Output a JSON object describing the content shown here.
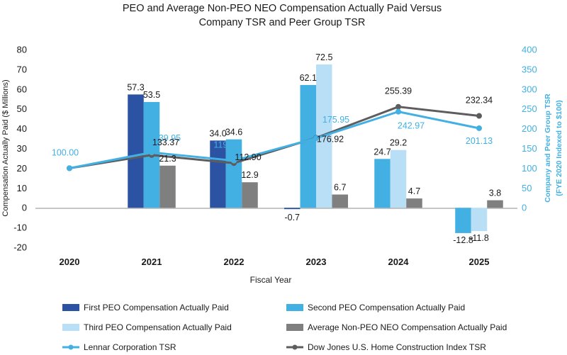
{
  "chart_data": {
    "type": "bar",
    "title_lines": [
      "PEO and Average Non-PEO NEO Compensation Actually Paid Versus",
      "Company TSR and Peer Group TSR"
    ],
    "xlabel": "Fiscal Year",
    "ylabel": "Compensation Actually Paid ($ Millions)",
    "y2label_lines": [
      "Company and Peer Group TSR",
      "(FYE 2020 Indexed to $100)"
    ],
    "ylim": [
      -20,
      80
    ],
    "yticks": [
      -20,
      -10,
      0,
      10,
      20,
      30,
      40,
      50,
      60,
      70,
      80
    ],
    "y2lim": [
      0,
      400
    ],
    "y2ticks": [
      0,
      50,
      100,
      150,
      200,
      250,
      300,
      350,
      400
    ],
    "categories": [
      "2020",
      "2021",
      "2022",
      "2023",
      "2024",
      "2025"
    ],
    "series": [
      {
        "name": "First PEO Compensation Actually Paid",
        "kind": "bar",
        "color": "#2b52a3",
        "values": [
          null,
          57.3,
          34.0,
          -0.7,
          null,
          null
        ],
        "labels": [
          "",
          "57.3",
          "34.0",
          "-0.7",
          "",
          ""
        ]
      },
      {
        "name": "Second PEO Compensation Actually Paid",
        "kind": "bar",
        "color": "#42b0e3",
        "values": [
          null,
          53.5,
          34.6,
          62.1,
          24.7,
          -12.8
        ],
        "labels": [
          "",
          "53.5",
          "34.6",
          "62.1",
          "24.7",
          "-12.8"
        ]
      },
      {
        "name": "Third PEO Compensation Actually Paid",
        "kind": "bar",
        "color": "#b9dff6",
        "values": [
          null,
          null,
          null,
          72.5,
          29.2,
          -11.8
        ],
        "labels": [
          "",
          "",
          "",
          "72.5",
          "29.2",
          "-11.8"
        ]
      },
      {
        "name": "Average Non-PEO NEO Compensation Actually Paid",
        "kind": "bar",
        "color": "#7f7f7f",
        "values": [
          null,
          21.3,
          12.9,
          6.7,
          4.7,
          3.8
        ],
        "labels": [
          "",
          "21.3",
          "12.9",
          "6.7",
          "4.7",
          "3.8"
        ]
      },
      {
        "name": "Lennar Corporation TSR",
        "kind": "line",
        "axis": "right",
        "color": "#42b0e3",
        "values": [
          100.0,
          139.95,
          119.19,
          175.95,
          242.97,
          201.13
        ],
        "labels": [
          "100.00",
          "139.95",
          "119.19",
          "175.95",
          "242.97",
          "201.13"
        ]
      },
      {
        "name": "Dow Jones U.S. Home Construction Index TSR",
        "kind": "line",
        "axis": "right",
        "color": "#5d5d5f",
        "values": [
          100.0,
          133.37,
          112.9,
          176.92,
          255.39,
          232.34
        ],
        "labels": [
          "",
          "133.37",
          "112.90",
          "176.92",
          "255.39",
          "232.34"
        ]
      }
    ],
    "legend_position": "bottom",
    "grid": false
  }
}
